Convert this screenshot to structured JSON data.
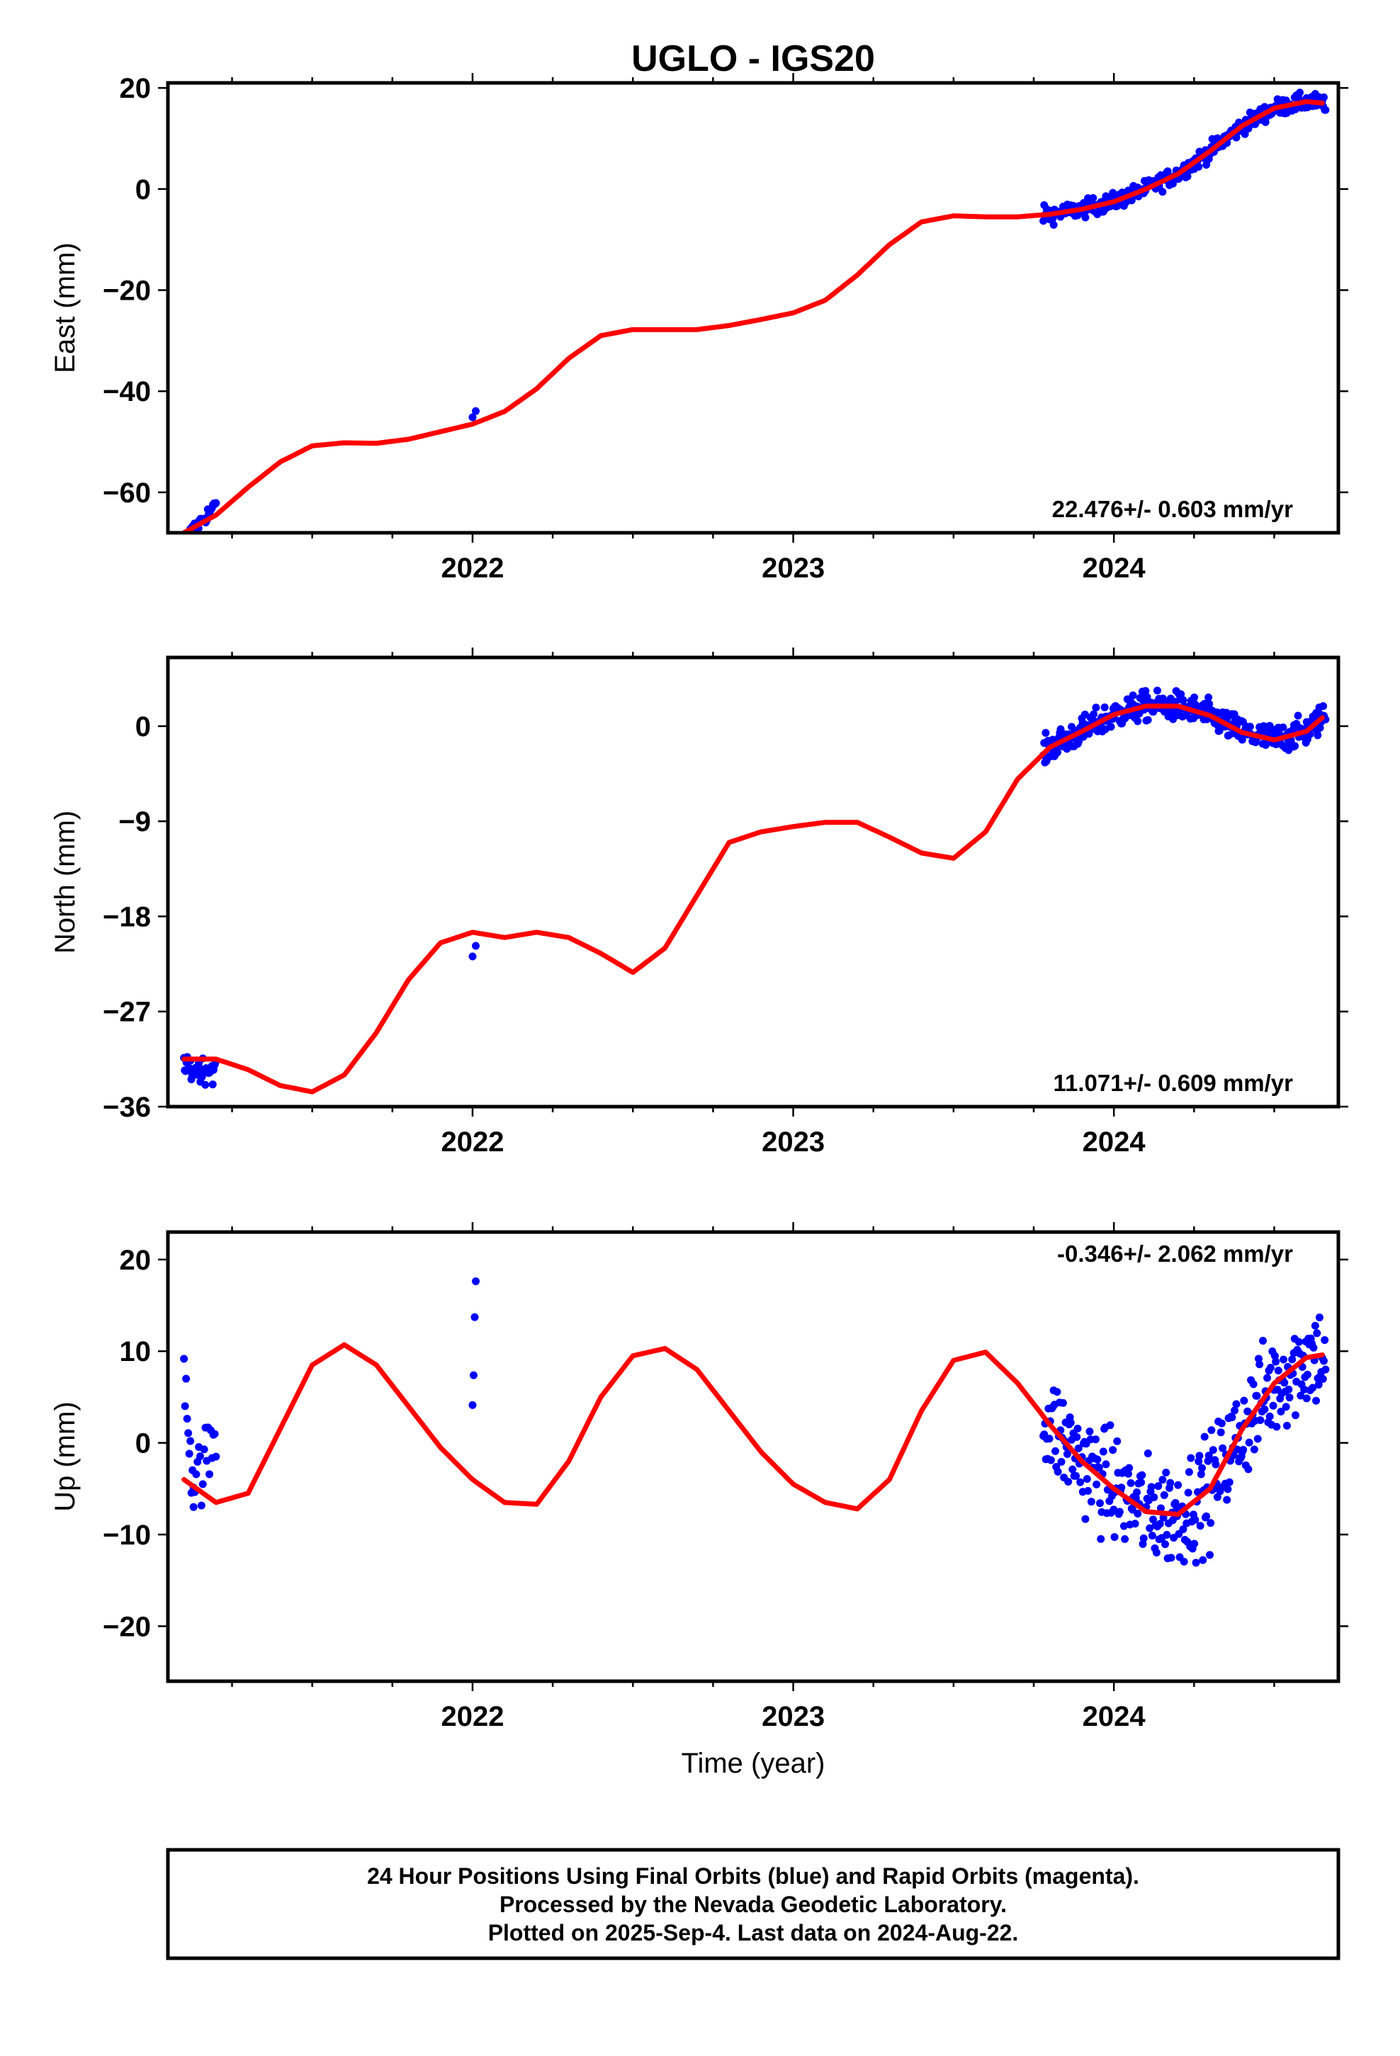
{
  "title": "UGLO - IGS20",
  "xlabel": "Time (year)",
  "footer": {
    "line1": "24 Hour Positions Using Final Orbits (blue) and Rapid Orbits (magenta).",
    "line2": "Processed by the Nevada Geodetic Laboratory.",
    "line3": "Plotted on 2025-Sep-4. Last data on 2024-Aug-22."
  },
  "colors": {
    "data": "#0000ff",
    "model": "#ff0000",
    "frame": "#000000"
  },
  "chart_data": [
    {
      "type": "scatter",
      "ylabel": "East (mm)",
      "rate_text": "22.476+/- 0.603 mm/yr",
      "xlim": [
        2021.05,
        2024.7
      ],
      "ylim": [
        -68,
        21
      ],
      "yticks": [
        20,
        0,
        -20,
        -40,
        -60
      ],
      "ytick_labels": [
        "20",
        "0",
        "−20",
        "−40",
        "−60"
      ],
      "xticks": [
        2022,
        2023,
        2024
      ],
      "xtick_labels": [
        "2022",
        "2023",
        "2024"
      ],
      "model": {
        "x": [
          2021.1,
          2021.2,
          2021.3,
          2021.4,
          2021.5,
          2021.6,
          2021.7,
          2021.8,
          2021.9,
          2022.0,
          2022.1,
          2022.2,
          2022.3,
          2022.4,
          2022.5,
          2022.6,
          2022.7,
          2022.8,
          2022.9,
          2023.0,
          2023.1,
          2023.2,
          2023.3,
          2023.4,
          2023.5,
          2023.6,
          2023.7,
          2023.8,
          2023.9,
          2024.0,
          2024.1,
          2024.2,
          2024.3,
          2024.4,
          2024.5,
          2024.6,
          2024.65
        ],
        "y": [
          -68,
          -64.5,
          -59,
          -54,
          -50.8,
          -50.2,
          -50.3,
          -49.5,
          -48,
          -46.5,
          -44,
          -39.5,
          -33.5,
          -29,
          -27.8,
          -27.8,
          -27.8,
          -27,
          -25.8,
          -24.5,
          -22,
          -17,
          -11,
          -6.5,
          -5.3,
          -5.5,
          -5.5,
          -5,
          -4,
          -2.5,
          0,
          3,
          7.5,
          12.5,
          16,
          17.3,
          17
        ]
      },
      "clusters": [
        {
          "x": [
            2021.12,
            2021.2
          ],
          "y": [
            -68,
            -62.5
          ],
          "n": 26,
          "noise": 1.5
        },
        {
          "x": [
            2022.0,
            2022.01
          ],
          "y": [
            -45,
            -44
          ],
          "n": 2,
          "noise": 0.4
        },
        {
          "x": [
            2023.78,
            2024.66
          ],
          "y": [
            -5.5,
            17.2
          ],
          "n": 330,
          "noise": 1.6,
          "follow": true
        }
      ]
    },
    {
      "type": "scatter",
      "ylabel": "North (mm)",
      "rate_text": "11.071+/- 0.609 mm/yr",
      "xlim": [
        2021.05,
        2024.7
      ],
      "ylim": [
        -36,
        6.5
      ],
      "yticks": [
        0,
        -9,
        -18,
        -27,
        -36
      ],
      "ytick_labels": [
        "0",
        "−9",
        "−18",
        "−27",
        "−36"
      ],
      "xticks": [
        2022,
        2023,
        2024
      ],
      "xtick_labels": [
        "2022",
        "2023",
        "2024"
      ],
      "model": {
        "x": [
          2021.1,
          2021.2,
          2021.3,
          2021.4,
          2021.5,
          2021.6,
          2021.7,
          2021.8,
          2021.9,
          2022.0,
          2022.1,
          2022.2,
          2022.3,
          2022.4,
          2022.5,
          2022.6,
          2022.7,
          2022.8,
          2022.9,
          2023.0,
          2023.1,
          2023.2,
          2023.3,
          2023.4,
          2023.5,
          2023.6,
          2023.7,
          2023.8,
          2023.9,
          2024.0,
          2024.1,
          2024.2,
          2024.3,
          2024.4,
          2024.5,
          2024.6,
          2024.65
        ],
        "y": [
          -31.5,
          -31.5,
          -32.5,
          -34,
          -34.6,
          -33,
          -29,
          -24,
          -20.5,
          -19.5,
          -20,
          -19.5,
          -20,
          -21.5,
          -23.3,
          -21,
          -16,
          -11,
          -10,
          -9.5,
          -9.1,
          -9.1,
          -10.5,
          -12,
          -12.5,
          -10,
          -5,
          -2,
          -0.5,
          1.1,
          1.9,
          1.9,
          1,
          -0.6,
          -1.3,
          -0.5,
          0.8
        ]
      },
      "clusters": [
        {
          "x": [
            2021.1,
            2021.2
          ],
          "y": [
            -32.5,
            -32.5
          ],
          "n": 40,
          "noise": 1.1
        },
        {
          "x": [
            2022.0,
            2022.01
          ],
          "y": [
            -21.5,
            -21
          ],
          "n": 2,
          "noise": 0.5
        },
        {
          "x": [
            2023.78,
            2024.66
          ],
          "y": [
            -4,
            1
          ],
          "n": 360,
          "noise": 1.3,
          "follow": true
        }
      ]
    },
    {
      "type": "scatter",
      "ylabel": "Up (mm)",
      "rate_text": "-0.346+/- 2.062 mm/yr",
      "xlim": [
        2021.05,
        2024.7
      ],
      "ylim": [
        -26,
        23
      ],
      "yticks": [
        20,
        10,
        0,
        -10,
        -20
      ],
      "ytick_labels": [
        "20",
        "10",
        "0",
        "−10",
        "−20"
      ],
      "xticks": [
        2022,
        2023,
        2024
      ],
      "xtick_labels": [
        "2022",
        "2023",
        "2024"
      ],
      "model": {
        "x": [
          2021.1,
          2021.2,
          2021.3,
          2021.4,
          2021.5,
          2021.6,
          2021.7,
          2021.8,
          2021.9,
          2022.0,
          2022.1,
          2022.2,
          2022.3,
          2022.4,
          2022.5,
          2022.6,
          2022.7,
          2022.8,
          2022.9,
          2023.0,
          2023.1,
          2023.2,
          2023.3,
          2023.4,
          2023.5,
          2023.6,
          2023.7,
          2023.8,
          2023.9,
          2024.0,
          2024.1,
          2024.2,
          2024.3,
          2024.4,
          2024.5,
          2024.6,
          2024.65
        ],
        "y": [
          -4,
          -6.5,
          -5.5,
          1.5,
          8.5,
          10.7,
          8.5,
          4,
          -0.5,
          -4,
          -6.5,
          -6.7,
          -2,
          5,
          9.5,
          10.3,
          8,
          3.5,
          -1,
          -4.5,
          -6.5,
          -7.2,
          -4,
          3.5,
          9,
          9.9,
          6.5,
          2,
          -2,
          -5,
          -7.5,
          -7.8,
          -5,
          1.5,
          6.5,
          9.3,
          9.6
        ]
      },
      "clusters": [
        {
          "x": [
            2021.1,
            2021.13
          ],
          "y": [
            9,
            -5
          ],
          "n": 10,
          "noise": 4
        },
        {
          "x": [
            2021.13,
            2021.2
          ],
          "y": [
            -4,
            0
          ],
          "n": 18,
          "noise": 3.5
        },
        {
          "x": [
            2022.0,
            2022.01
          ],
          "y": [
            4,
            18
          ],
          "n": 4,
          "noise": 2
        },
        {
          "x": [
            2023.78,
            2024.66
          ],
          "y": [
            0,
            10
          ],
          "n": 330,
          "noise": 5.5,
          "follow": true
        }
      ]
    }
  ]
}
